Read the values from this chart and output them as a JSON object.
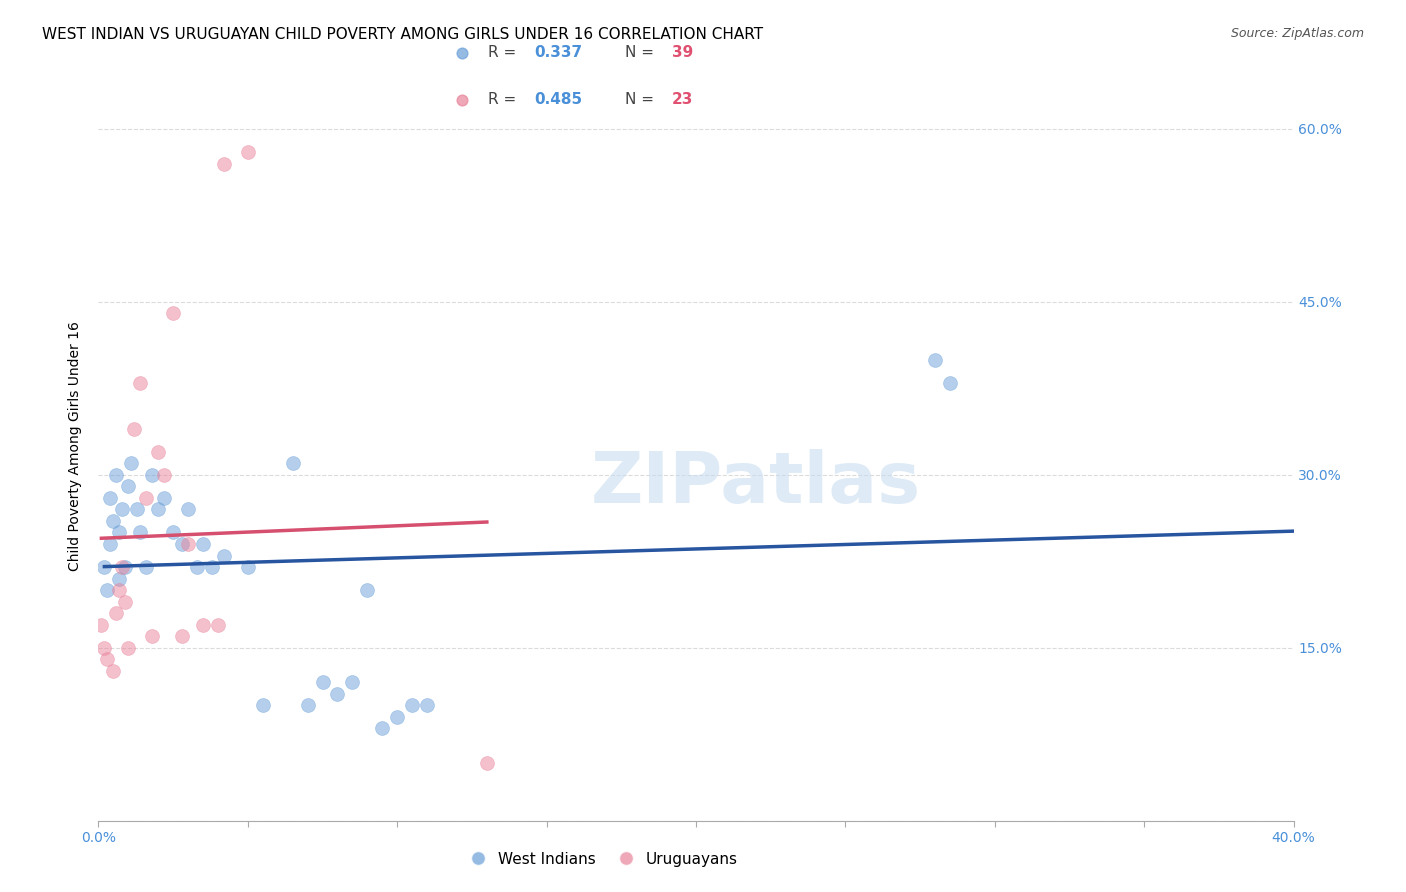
{
  "title": "WEST INDIAN VS URUGUAYAN CHILD POVERTY AMONG GIRLS UNDER 16 CORRELATION CHART",
  "source": "Source: ZipAtlas.com",
  "ylabel_label": "Child Poverty Among Girls Under 16",
  "watermark": "ZIPatlas",
  "xmin": 0.0,
  "xmax": 0.4,
  "ymin": 0.0,
  "ymax": 0.65,
  "blue_color": "#6a9fd8",
  "pink_color": "#e8839a",
  "blue_line_color": "#2855a0",
  "pink_line_color": "#d64f6e",
  "legend_blue_R": "0.337",
  "legend_blue_N": "39",
  "legend_pink_R": "0.485",
  "legend_pink_N": "23",
  "background_color": "#ffffff",
  "title_fontsize": 11,
  "axis_label_fontsize": 10,
  "tick_fontsize": 10,
  "legend_fontsize": 11,
  "marker_size": 100,
  "marker_alpha": 0.5,
  "line_width": 2.5,
  "west_indians_x": [
    0.002,
    0.003,
    0.004,
    0.004,
    0.005,
    0.006,
    0.007,
    0.007,
    0.008,
    0.009,
    0.01,
    0.011,
    0.013,
    0.014,
    0.016,
    0.018,
    0.02,
    0.022,
    0.025,
    0.028,
    0.03,
    0.033,
    0.035,
    0.038,
    0.042,
    0.05,
    0.055,
    0.065,
    0.07,
    0.075,
    0.08,
    0.085,
    0.09,
    0.095,
    0.1,
    0.105,
    0.11,
    0.28,
    0.285
  ],
  "west_indians_y": [
    0.22,
    0.2,
    0.28,
    0.24,
    0.26,
    0.3,
    0.25,
    0.21,
    0.27,
    0.22,
    0.29,
    0.31,
    0.27,
    0.25,
    0.22,
    0.3,
    0.27,
    0.28,
    0.25,
    0.24,
    0.27,
    0.22,
    0.24,
    0.22,
    0.23,
    0.22,
    0.1,
    0.31,
    0.1,
    0.12,
    0.11,
    0.12,
    0.2,
    0.08,
    0.09,
    0.1,
    0.1,
    0.4,
    0.38
  ],
  "uruguayans_x": [
    0.001,
    0.002,
    0.003,
    0.005,
    0.006,
    0.007,
    0.008,
    0.009,
    0.01,
    0.012,
    0.014,
    0.016,
    0.018,
    0.02,
    0.022,
    0.025,
    0.028,
    0.03,
    0.035,
    0.04,
    0.042,
    0.05,
    0.13
  ],
  "uruguayans_y": [
    0.17,
    0.15,
    0.14,
    0.13,
    0.18,
    0.2,
    0.22,
    0.19,
    0.15,
    0.34,
    0.38,
    0.28,
    0.16,
    0.32,
    0.3,
    0.44,
    0.16,
    0.24,
    0.17,
    0.17,
    0.57,
    0.58,
    0.05
  ]
}
